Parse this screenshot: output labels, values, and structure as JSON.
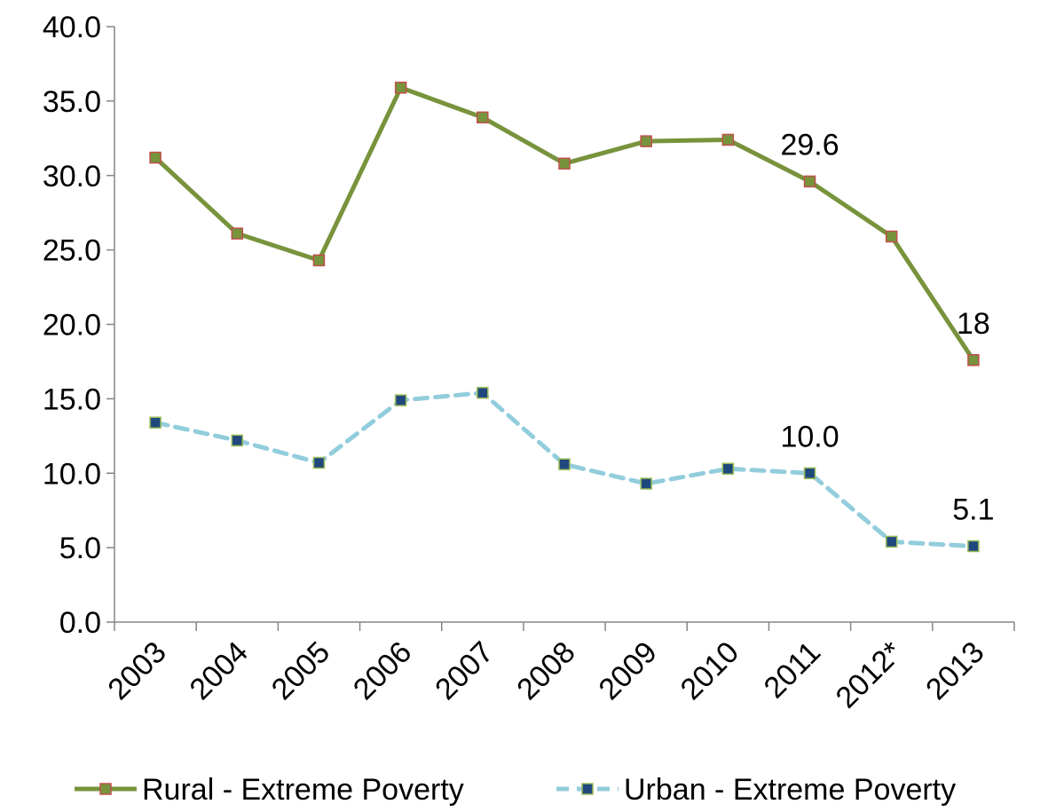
{
  "chart_data": {
    "type": "line",
    "categories": [
      "2003",
      "2004",
      "2005",
      "2006",
      "2007",
      "2008",
      "2009",
      "2010",
      "2011",
      "2012*",
      "2013"
    ],
    "y_ticks": [
      "0.0",
      "5.0",
      "10.0",
      "15.0",
      "20.0",
      "25.0",
      "30.0",
      "35.0",
      "40.0"
    ],
    "ylim": [
      0,
      40
    ],
    "grid": false,
    "legend_position": "bottom",
    "series": [
      {
        "name": "Rural - Extreme Poverty",
        "values": [
          31.2,
          26.1,
          24.3,
          35.9,
          33.9,
          30.8,
          32.3,
          32.4,
          29.6,
          25.9,
          17.6
        ],
        "line_color": "#77933C",
        "marker_fill": "#77933C",
        "marker_stroke": "#C0504D",
        "dashed": false
      },
      {
        "name": "Urban - Extreme Poverty",
        "values": [
          13.4,
          12.2,
          10.7,
          14.9,
          15.4,
          10.6,
          9.3,
          10.3,
          10.0,
          5.4,
          5.1
        ],
        "line_color": "#92CDDC",
        "marker_fill": "#1F497D",
        "marker_stroke": "#9BBB59",
        "dashed": true
      }
    ],
    "annotations": [
      {
        "series": 0,
        "index": 8,
        "text": "29.6"
      },
      {
        "series": 0,
        "index": 10,
        "text": "18"
      },
      {
        "series": 1,
        "index": 8,
        "text": "10.0"
      },
      {
        "series": 1,
        "index": 10,
        "text": "5.1"
      }
    ]
  }
}
